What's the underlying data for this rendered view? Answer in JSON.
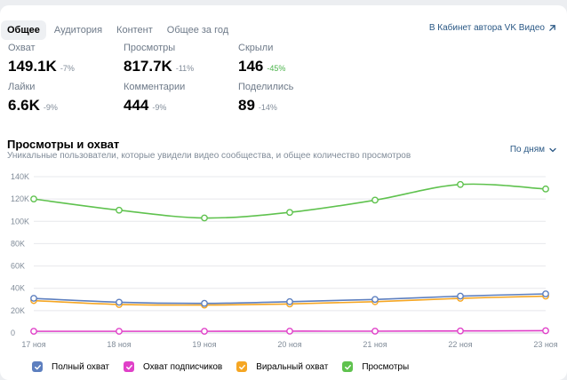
{
  "tabs": [
    {
      "label": "Общее",
      "active": true
    },
    {
      "label": "Аудитория",
      "active": false
    },
    {
      "label": "Контент",
      "active": false
    },
    {
      "label": "Общее за год",
      "active": false
    }
  ],
  "author_link": "В Кабинет автора VK Видео",
  "metrics": [
    {
      "label": "Охват",
      "value": "149.1K",
      "delta": "-7%"
    },
    {
      "label": "Просмотры",
      "value": "817.7K",
      "delta": "-11%"
    },
    {
      "label": "Скрыли",
      "value": "146",
      "delta": "-45%"
    },
    {
      "label": "Лайки",
      "value": "6.6K",
      "delta": "-9%"
    },
    {
      "label": "Комментарии",
      "value": "444",
      "delta": "-9%"
    },
    {
      "label": "Поделились",
      "value": "89",
      "delta": "-14%"
    }
  ],
  "chart_section": {
    "title": "Просмотры и охват",
    "subtitle": "Уникальные пользователи, которые увидели видео сообщества, и общее количество просмотров",
    "period": "По дням"
  },
  "colors": {
    "full_reach": "#5d7fbf",
    "subscribers": "#e040c8",
    "viral": "#f5a623",
    "views": "#5fc24e",
    "grid": "#e7e8ec",
    "axis_text": "#818c99"
  },
  "chart_data": {
    "type": "line",
    "x": [
      "17 ноя",
      "18 ноя",
      "19 ноя",
      "20 ноя",
      "21 ноя",
      "22 ноя",
      "23 ноя"
    ],
    "ylim": [
      0,
      140000
    ],
    "yticks": [
      0,
      20000,
      40000,
      60000,
      80000,
      100000,
      120000,
      140000
    ],
    "ytick_labels": [
      "0",
      "20K",
      "40K",
      "60K",
      "80K",
      "100K",
      "120K",
      "140K"
    ],
    "series": [
      {
        "name": "Полный охват",
        "values": [
          31000,
          27500,
          26500,
          28000,
          30000,
          33000,
          35000
        ]
      },
      {
        "name": "Охват подписчиков",
        "values": [
          1500,
          1500,
          1500,
          1600,
          1600,
          1800,
          2000
        ]
      },
      {
        "name": "Виральный охват",
        "values": [
          29000,
          25500,
          25000,
          26000,
          28000,
          31000,
          33000
        ]
      },
      {
        "name": "Просмотры",
        "values": [
          120000,
          110000,
          103000,
          108000,
          119000,
          133000,
          129000
        ]
      }
    ]
  }
}
